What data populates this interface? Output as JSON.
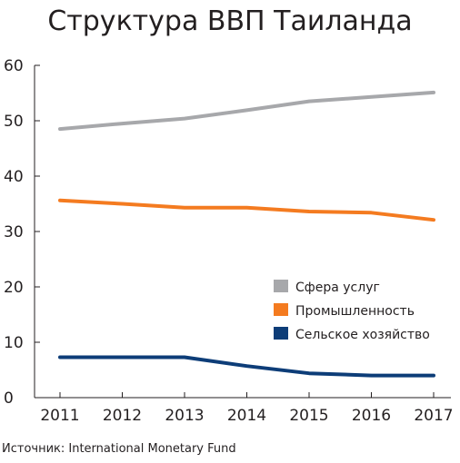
{
  "chart_data": {
    "type": "line",
    "title": "Структура ВВП Таиланда",
    "xlabel": "",
    "ylabel": "",
    "x": [
      "2011",
      "2012",
      "2013",
      "2014",
      "2015",
      "2016",
      "2017"
    ],
    "ylim": [
      0,
      60
    ],
    "yticks": [
      "0",
      "10",
      "20",
      "30",
      "40",
      "50",
      "60"
    ],
    "grid": false,
    "legend_position": "lower-right",
    "series": [
      {
        "name": "Сфера услуг",
        "color": "#a7a8ab",
        "values": [
          48.5,
          49.5,
          50.4,
          51.9,
          53.5,
          54.3,
          55.1
        ]
      },
      {
        "name": "Промышленность",
        "color": "#f47b20",
        "values": [
          35.6,
          35.0,
          34.3,
          34.3,
          33.6,
          33.4,
          32.1
        ]
      },
      {
        "name": "Сельское хозяйство",
        "color": "#0d3d78",
        "values": [
          7.3,
          7.3,
          7.3,
          5.7,
          4.4,
          4.0,
          4.0
        ]
      }
    ],
    "source": "Источник: International Monetary Fund"
  }
}
